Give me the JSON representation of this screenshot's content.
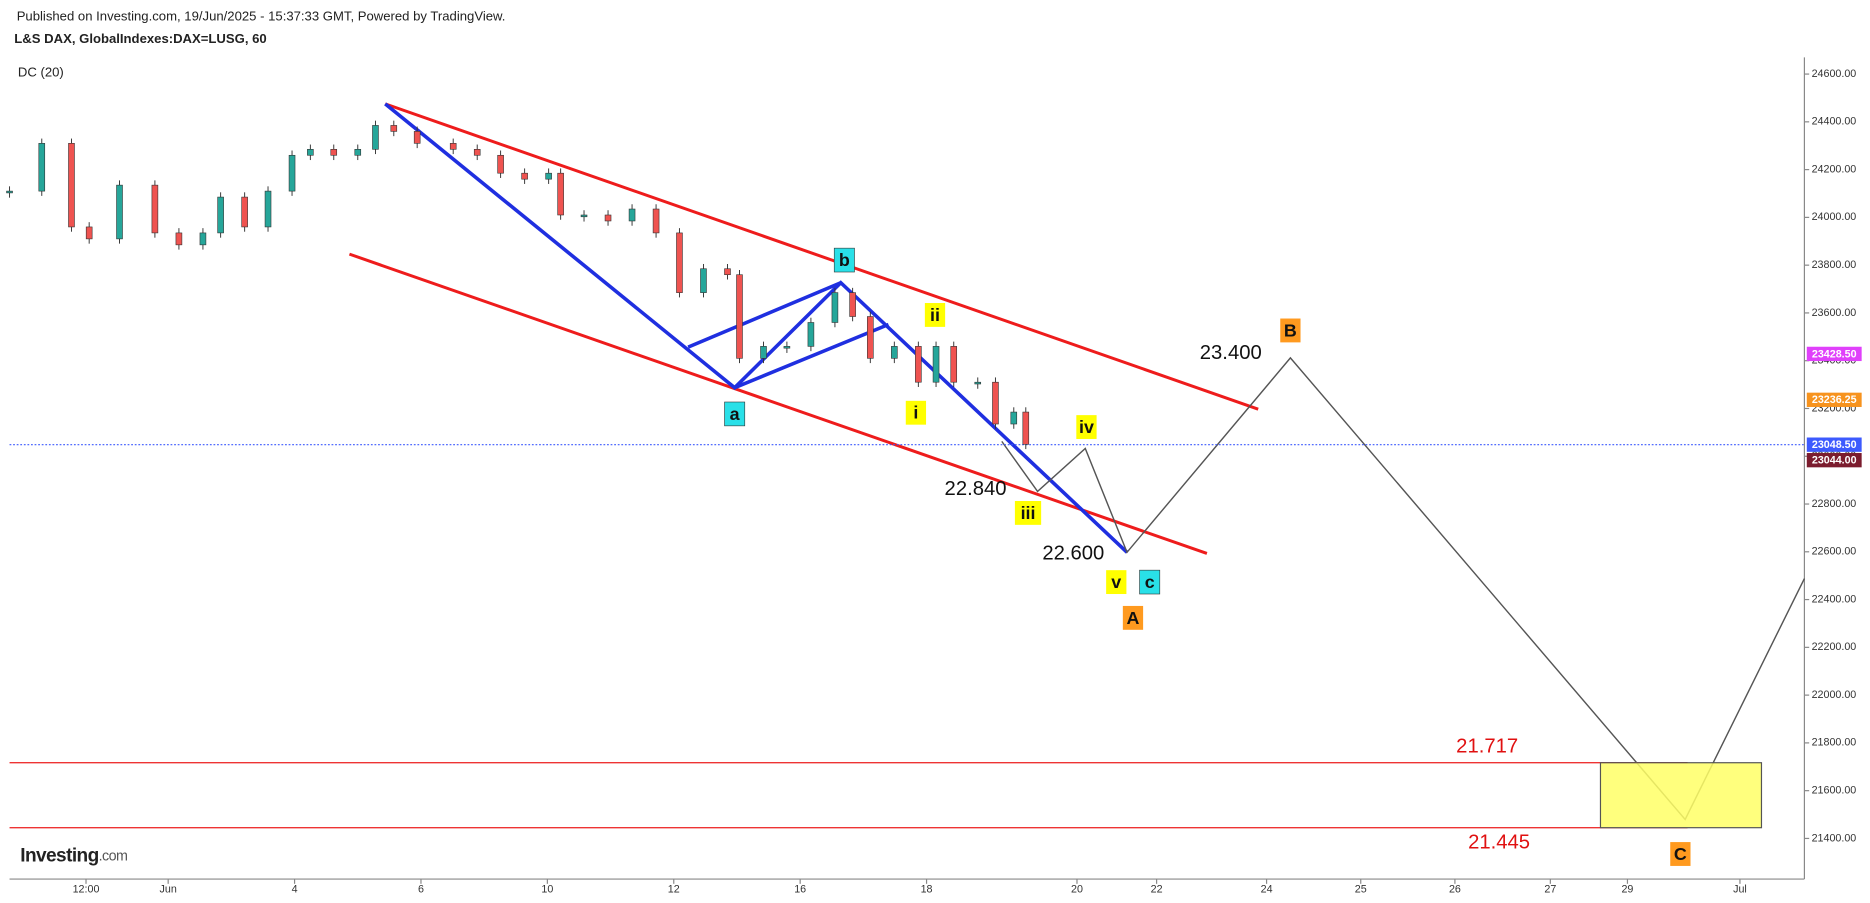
{
  "header": {
    "published": "Published on Investing.com, 19/Jun/2025 - 15:37:33 GMT, Powered by TradingView.",
    "symbol": "L&S DAX, GlobalIndexes:DAX=LUSG, 60",
    "indicator": "DC (20)",
    "brand": "Investing",
    "brand_suffix": ".com"
  },
  "chart_data": {
    "type": "candlestick",
    "x": [
      -2.51,
      -2.0,
      -1.53,
      -1.25,
      -0.77,
      -0.21,
      0.17,
      0.55,
      0.83,
      1.21,
      1.58,
      1.96,
      2.25,
      2.62,
      3.0,
      3.28,
      3.57,
      3.94,
      4.51,
      4.89,
      5.26,
      5.64,
      6.02,
      6.21,
      6.58,
      6.96,
      7.34,
      7.72,
      8.09,
      8.47,
      8.85,
      9.04,
      9.42,
      9.79,
      10.17,
      10.55,
      10.83,
      11.11,
      11.49,
      11.87,
      12.15,
      12.43,
      12.81,
      13.09,
      13.38,
      13.57
    ],
    "values": [
      24110,
      24310,
      23960,
      23910,
      24135,
      23935,
      23885,
      23935,
      24085,
      23960,
      24110,
      24260,
      24285,
      24260,
      24285,
      24385,
      24360,
      24310,
      24285,
      24260,
      24185,
      24160,
      24185,
      24010,
      24010,
      23985,
      24035,
      23935,
      23685,
      23785,
      23760,
      23410,
      23460,
      23460,
      23560,
      23685,
      23585,
      23410,
      23460,
      23310,
      23460,
      23310,
      23310,
      23135,
      23185,
      23050
    ],
    "up_color": "#26a69a",
    "down_color": "#ef5350",
    "xlim": [
      -2.51,
      25.89
    ],
    "ylim": [
      21230,
      24670
    ],
    "xticks": [
      {
        "value": -1.3,
        "label": "12:00"
      },
      {
        "value": 0,
        "label": "Jun"
      },
      {
        "value": 2,
        "label": "4"
      },
      {
        "value": 4,
        "label": "6"
      },
      {
        "value": 6,
        "label": "10"
      },
      {
        "value": 8,
        "label": "12"
      },
      {
        "value": 10,
        "label": "16"
      },
      {
        "value": 12,
        "label": "18"
      },
      {
        "value": 14.38,
        "label": "20"
      },
      {
        "value": 15.64,
        "label": "22"
      },
      {
        "value": 17.38,
        "label": "24"
      },
      {
        "value": 18.87,
        "label": "25"
      },
      {
        "value": 20.36,
        "label": "26"
      },
      {
        "value": 21.87,
        "label": "27"
      },
      {
        "value": 23.09,
        "label": "29"
      },
      {
        "value": 24.87,
        "label": "Jul"
      }
    ],
    "yticks": [
      {
        "value": 24600,
        "label": "24600.00"
      },
      {
        "value": 24400,
        "label": "24400.00"
      },
      {
        "value": 24200,
        "label": "24200.00"
      },
      {
        "value": 24000,
        "label": "24000.00"
      },
      {
        "value": 23800,
        "label": "23800.00"
      },
      {
        "value": 23600,
        "label": "23600.00"
      },
      {
        "value": 23400,
        "label": "23400.00"
      },
      {
        "value": 23200,
        "label": "23200.00"
      },
      {
        "value": 23000,
        "label": "23000.00"
      },
      {
        "value": 22800,
        "label": "22800.00"
      },
      {
        "value": 22600,
        "label": "22600.00"
      },
      {
        "value": 22400,
        "label": "22400.00"
      },
      {
        "value": 22200,
        "label": "22200.00"
      },
      {
        "value": 22000,
        "label": "22000.00"
      },
      {
        "value": 21800,
        "label": "21800.00"
      },
      {
        "value": 21600,
        "label": "21600.00"
      },
      {
        "value": 21400,
        "label": "21400.00"
      }
    ],
    "price_tags": [
      {
        "value": 23428.5,
        "label": "23428.50",
        "color": "#e040fb"
      },
      {
        "value": 23236.25,
        "label": "23236.25",
        "color": "#f7931e"
      },
      {
        "value": 23048.5,
        "label": "23048.50",
        "color": "#3d5afe"
      },
      {
        "value": 23044,
        "label": "23044.00",
        "color": "#7b1c2e"
      }
    ],
    "levels": [
      {
        "value": 21717,
        "label": "21.717"
      },
      {
        "value": 21445,
        "label": "21.445"
      }
    ],
    "targets": [
      {
        "value": 23400,
        "label": "23.400"
      },
      {
        "value": 22840,
        "label": "22.840"
      },
      {
        "value": 22600,
        "label": "22.600"
      }
    ],
    "wave_labels": [
      "a",
      "b",
      "c",
      "i",
      "ii",
      "iii",
      "iv",
      "v",
      "A",
      "B",
      "C"
    ]
  }
}
